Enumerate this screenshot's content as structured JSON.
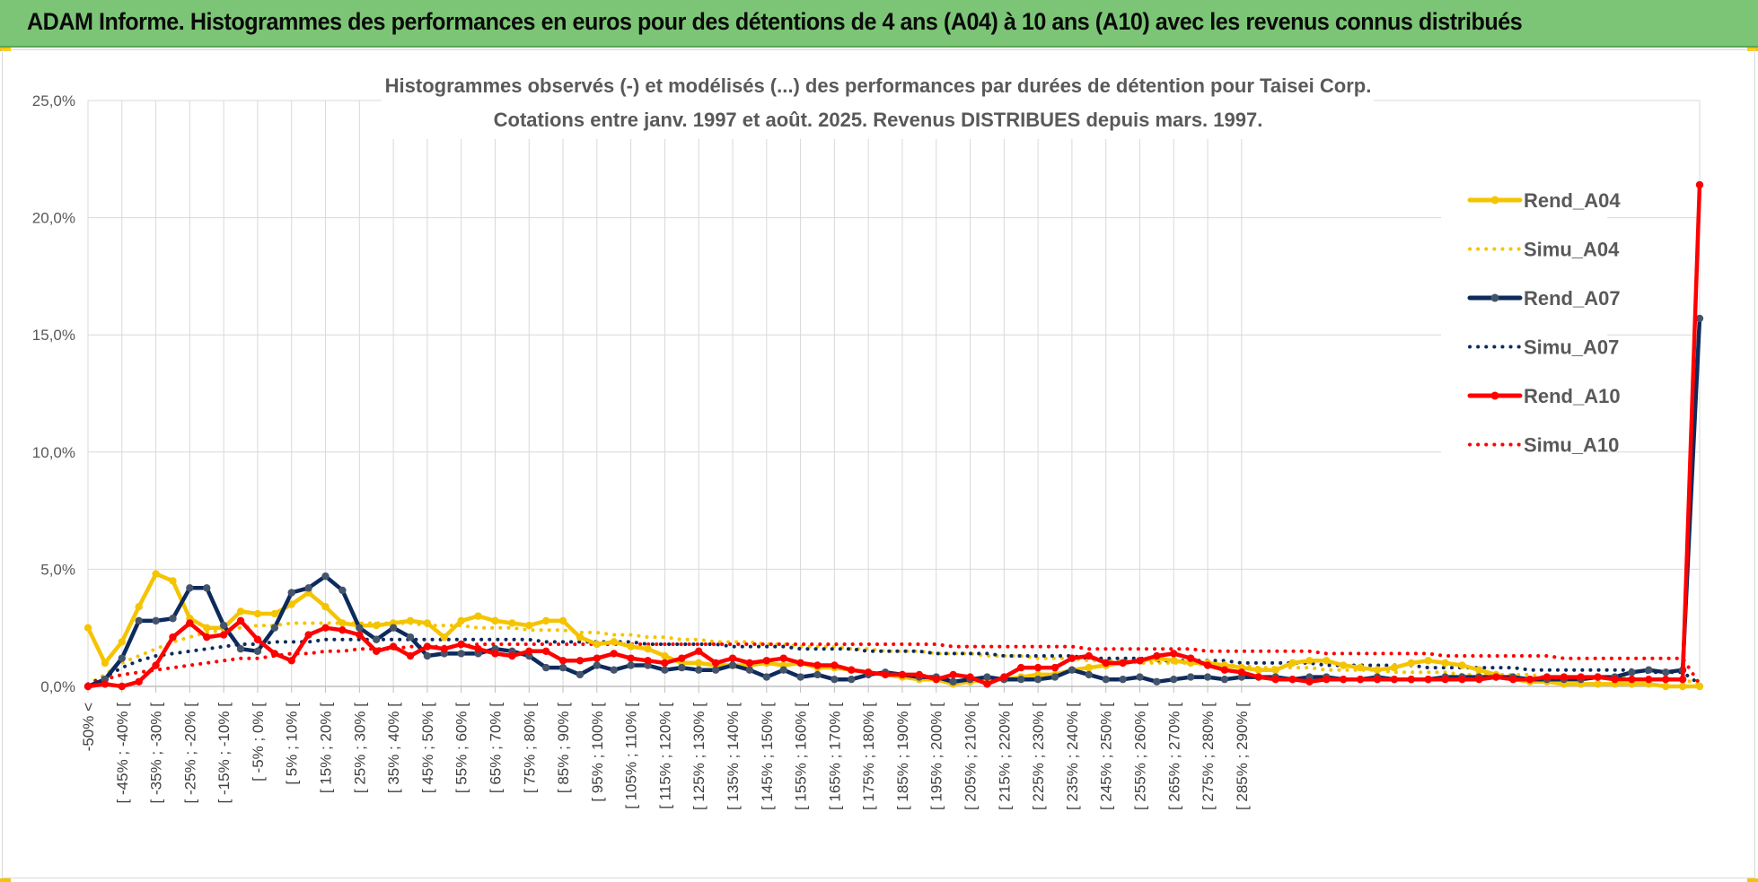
{
  "banner": {
    "title": "ADAM Informe. Histogrammes des performances en euros pour des détentions de 4 ans (A04) à 10 ans (A10) avec les revenus connus distribués"
  },
  "colors": {
    "banner_bg": "#7cc576",
    "Rend_A04": "#f5c400",
    "Rend_A07": "#0d2a5c",
    "Rend_A10": "#ff0000"
  },
  "chart_data": {
    "type": "line",
    "title": "Histogrammes observés (-) et modélisés (...) des performances par durées de détention pour Taisei Corp.",
    "subtitle": "Cotations entre janv. 1997 et août. 2025. Revenus DISTRIBUES depuis mars. 1997.",
    "ylim": [
      0,
      25
    ],
    "yticks": [
      "0,0%",
      "5,0%",
      "10,0%",
      "15,0%",
      "20,0%",
      "25,0%"
    ],
    "grid": true,
    "legend_position": "right",
    "x_labels": [
      "-50% <",
      "[ -45% ; -40% [",
      "[ -35% ; -30% [",
      "[ -25% ; -20% [",
      "[ -15% ; -10% [",
      "[ -5% ; 0% [",
      "[ 5% ; 10% [",
      "[ 15% ; 20% [",
      "[ 25% ; 30% [",
      "[ 35% ; 40% [",
      "[ 45% ; 50% [",
      "[ 55% ; 60% [",
      "[ 65% ; 70% [",
      "[ 75% ; 80% [",
      "[ 85% ; 90% [",
      "[ 95% ; 100% [",
      "[ 105% ; 110% [",
      "[ 115% ; 120% [",
      "[ 125% ; 130% [",
      "[ 135% ; 140% [",
      "[ 145% ; 150% [",
      "[ 155% ; 160% [",
      "[ 165% ; 170% [",
      "[ 175% ; 180% [",
      "[ 185% ; 190% [",
      "[ 195% ; 200% [",
      "[ 205% ; 210% [",
      "[ 215% ; 220% [",
      "[ 225% ; 230% [",
      "[ 235% ; 240% [",
      "[ 245% ; 250% [",
      "[ 255% ; 260% [",
      "[ 265% ; 270% [",
      "[ 275% ; 280% [",
      "[ 285% ; 290% ["
    ],
    "series": [
      {
        "name": "Rend_A04",
        "style": "solid",
        "color": "#f5c400",
        "values": [
          2.5,
          1.0,
          1.9,
          3.4,
          4.8,
          4.5,
          2.9,
          2.5,
          2.5,
          3.2,
          3.1,
          3.1,
          3.5,
          4.0,
          3.4,
          2.7,
          2.6,
          2.6,
          2.7,
          2.8,
          2.7,
          2.1,
          2.8,
          3.0,
          2.8,
          2.7,
          2.6,
          2.8,
          2.8,
          2.1,
          1.8,
          1.9,
          1.7,
          1.6,
          1.3,
          1.0,
          1.0,
          0.9,
          0.9,
          0.9,
          1.0,
          0.9,
          1.0,
          0.8,
          0.8,
          0.7,
          0.6,
          0.5,
          0.4,
          0.3,
          0.3,
          0.1,
          0.2,
          0.3,
          0.3,
          0.4,
          0.5,
          0.5,
          0.7,
          0.8,
          0.9,
          1.0,
          1.1,
          1.2,
          1.1,
          1.0,
          1.0,
          0.9,
          0.8,
          0.7,
          0.7,
          1.0,
          1.1,
          1.1,
          0.9,
          0.8,
          0.7,
          0.8,
          1.0,
          1.1,
          1.0,
          0.9,
          0.7,
          0.5,
          0.3,
          0.2,
          0.2,
          0.1,
          0.1,
          0.1,
          0.1,
          0.1,
          0.1,
          0.0,
          0.0,
          0.0
        ]
      },
      {
        "name": "Simu_A04",
        "style": "dotted",
        "color": "#f5c400",
        "values": [
          0.1,
          0.5,
          1.0,
          1.3,
          1.6,
          1.9,
          2.1,
          2.3,
          2.4,
          2.5,
          2.6,
          2.6,
          2.7,
          2.7,
          2.7,
          2.7,
          2.7,
          2.7,
          2.7,
          2.7,
          2.6,
          2.6,
          2.6,
          2.5,
          2.5,
          2.5,
          2.4,
          2.4,
          2.4,
          2.3,
          2.3,
          2.2,
          2.2,
          2.1,
          2.1,
          2.0,
          2.0,
          1.9,
          1.9,
          1.9,
          1.8,
          1.8,
          1.7,
          1.7,
          1.7,
          1.6,
          1.6,
          1.5,
          1.5,
          1.5,
          1.4,
          1.4,
          1.4,
          1.3,
          1.3,
          1.3,
          1.2,
          1.2,
          1.2,
          1.1,
          1.1,
          1.1,
          1.0,
          1.0,
          1.0,
          1.0,
          0.9,
          0.9,
          0.9,
          0.8,
          0.8,
          0.8,
          0.8,
          0.7,
          0.7,
          0.7,
          0.7,
          0.6,
          0.6,
          0.6,
          0.6,
          0.5,
          0.5,
          0.5,
          0.5,
          0.5,
          0.4,
          0.4,
          0.4,
          0.4,
          0.4,
          0.3,
          0.3,
          0.3,
          0.3,
          0.1
        ]
      },
      {
        "name": "Rend_A07",
        "style": "solid",
        "color": "#0d2a5c",
        "values": [
          0.0,
          0.3,
          1.2,
          2.8,
          2.8,
          2.9,
          4.2,
          4.2,
          2.6,
          1.6,
          1.5,
          2.5,
          4.0,
          4.2,
          4.7,
          4.1,
          2.5,
          2.0,
          2.5,
          2.1,
          1.3,
          1.4,
          1.4,
          1.4,
          1.6,
          1.5,
          1.3,
          0.8,
          0.8,
          0.5,
          0.9,
          0.7,
          0.9,
          0.9,
          0.7,
          0.8,
          0.7,
          0.7,
          0.9,
          0.7,
          0.4,
          0.7,
          0.4,
          0.5,
          0.3,
          0.3,
          0.5,
          0.6,
          0.5,
          0.4,
          0.4,
          0.2,
          0.3,
          0.4,
          0.3,
          0.3,
          0.3,
          0.4,
          0.7,
          0.5,
          0.3,
          0.3,
          0.4,
          0.2,
          0.3,
          0.4,
          0.4,
          0.3,
          0.4,
          0.4,
          0.4,
          0.3,
          0.4,
          0.4,
          0.3,
          0.3,
          0.4,
          0.3,
          0.3,
          0.3,
          0.4,
          0.4,
          0.4,
          0.4,
          0.4,
          0.3,
          0.3,
          0.3,
          0.3,
          0.4,
          0.4,
          0.6,
          0.7,
          0.6,
          0.7,
          15.7
        ]
      },
      {
        "name": "Simu_A07",
        "style": "dotted",
        "color": "#0d2a5c",
        "values": [
          0.1,
          0.4,
          0.8,
          1.1,
          1.3,
          1.4,
          1.5,
          1.6,
          1.7,
          1.8,
          1.8,
          1.9,
          1.9,
          1.9,
          2.0,
          2.0,
          2.0,
          2.0,
          2.0,
          2.0,
          2.0,
          2.0,
          2.0,
          2.0,
          2.0,
          2.0,
          2.0,
          1.9,
          1.9,
          1.9,
          1.9,
          1.9,
          1.9,
          1.8,
          1.8,
          1.8,
          1.8,
          1.8,
          1.7,
          1.7,
          1.7,
          1.7,
          1.6,
          1.6,
          1.6,
          1.6,
          1.5,
          1.5,
          1.5,
          1.5,
          1.4,
          1.4,
          1.4,
          1.4,
          1.3,
          1.3,
          1.3,
          1.3,
          1.3,
          1.2,
          1.2,
          1.2,
          1.2,
          1.1,
          1.1,
          1.1,
          1.1,
          1.1,
          1.0,
          1.0,
          1.0,
          1.0,
          1.0,
          0.9,
          0.9,
          0.9,
          0.9,
          0.9,
          0.9,
          0.8,
          0.8,
          0.8,
          0.8,
          0.8,
          0.8,
          0.7,
          0.7,
          0.7,
          0.7,
          0.7,
          0.7,
          0.7,
          0.6,
          0.6,
          0.6,
          0.1
        ]
      },
      {
        "name": "Rend_A10",
        "style": "solid",
        "color": "#ff0000",
        "values": [
          0.0,
          0.1,
          0.0,
          0.2,
          0.9,
          2.1,
          2.7,
          2.1,
          2.2,
          2.8,
          2.0,
          1.4,
          1.1,
          2.2,
          2.5,
          2.4,
          2.2,
          1.5,
          1.7,
          1.3,
          1.7,
          1.6,
          1.8,
          1.6,
          1.4,
          1.3,
          1.5,
          1.5,
          1.1,
          1.1,
          1.2,
          1.4,
          1.2,
          1.1,
          1.0,
          1.2,
          1.5,
          1.0,
          1.2,
          1.0,
          1.1,
          1.2,
          1.0,
          0.9,
          0.9,
          0.7,
          0.6,
          0.5,
          0.5,
          0.5,
          0.3,
          0.5,
          0.4,
          0.1,
          0.4,
          0.8,
          0.8,
          0.8,
          1.2,
          1.3,
          1.0,
          1.0,
          1.1,
          1.3,
          1.4,
          1.2,
          0.9,
          0.7,
          0.6,
          0.4,
          0.3,
          0.3,
          0.2,
          0.3,
          0.3,
          0.3,
          0.3,
          0.3,
          0.3,
          0.3,
          0.3,
          0.3,
          0.3,
          0.4,
          0.3,
          0.3,
          0.4,
          0.4,
          0.4,
          0.4,
          0.3,
          0.3,
          0.3,
          0.3,
          0.3,
          21.4
        ]
      },
      {
        "name": "Simu_A10",
        "style": "dotted",
        "color": "#ff0000",
        "values": [
          0.1,
          0.3,
          0.5,
          0.6,
          0.7,
          0.8,
          0.9,
          1.0,
          1.1,
          1.2,
          1.2,
          1.3,
          1.4,
          1.4,
          1.5,
          1.5,
          1.6,
          1.6,
          1.6,
          1.7,
          1.7,
          1.7,
          1.7,
          1.8,
          1.8,
          1.8,
          1.8,
          1.8,
          1.8,
          1.8,
          1.8,
          1.8,
          1.8,
          1.8,
          1.8,
          1.8,
          1.8,
          1.8,
          1.8,
          1.8,
          1.8,
          1.8,
          1.8,
          1.8,
          1.8,
          1.8,
          1.8,
          1.8,
          1.8,
          1.8,
          1.8,
          1.7,
          1.7,
          1.7,
          1.7,
          1.7,
          1.7,
          1.7,
          1.7,
          1.6,
          1.6,
          1.6,
          1.6,
          1.6,
          1.6,
          1.6,
          1.5,
          1.5,
          1.5,
          1.5,
          1.5,
          1.5,
          1.5,
          1.4,
          1.4,
          1.4,
          1.4,
          1.4,
          1.4,
          1.4,
          1.3,
          1.3,
          1.3,
          1.3,
          1.3,
          1.3,
          1.3,
          1.2,
          1.2,
          1.2,
          1.2,
          1.2,
          1.2,
          1.2,
          1.2,
          0.1
        ]
      }
    ]
  }
}
